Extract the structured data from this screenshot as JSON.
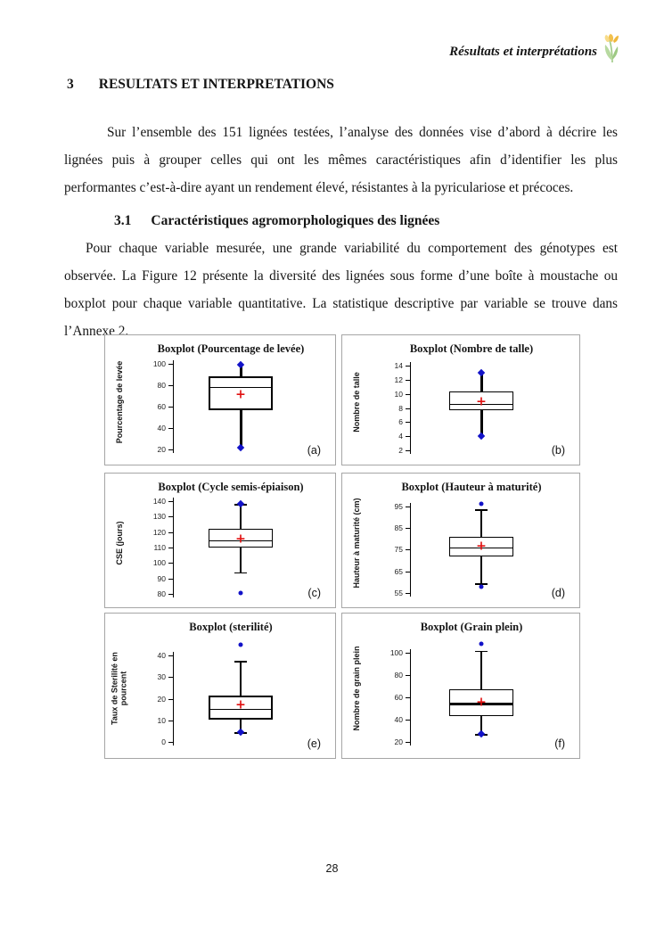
{
  "page": {
    "header": {
      "title": "Résultats et interprétations"
    },
    "section": {
      "number": "3",
      "title": "RESULTATS ET INTERPRETATIONS"
    },
    "paragraph1": "Sur l’ensemble des 151 lignées testées, l’analyse des données vise d’abord à décrire les lignées puis à grouper celles qui ont les mêmes caractéristiques afin d’identifier les plus performantes c’est-à-dire ayant un rendement élevé, résistantes à la pyriculariose et précoces.",
    "subsection": {
      "number": "3.1",
      "title": "Caractéristiques agromorphologiques des lignées"
    },
    "paragraph2": "Pour chaque variable mesurée, une grande variabilité du comportement des génotypes est observée. La Figure 12 présente la diversité des lignées sous forme d’une boîte à moustache ou boxplot pour chaque variable quantitative. La statistique descriptive par variable se trouve dans l’Annexe 2.",
    "page_number": "28"
  },
  "colors": {
    "line": "#000000",
    "mean_marker": "#e01010",
    "point_marker": "#1212c8",
    "panel_border": "#a6a6a6",
    "flower_petal": "#f2c14e",
    "flower_leaf": "#9dc983"
  },
  "chart_data": [
    {
      "type": "boxplot",
      "letter": "(a)",
      "title": "Boxplot (Pourcentage de levée)",
      "ylabel": "Pourcentage de levée",
      "ticks": [
        20,
        40,
        60,
        80,
        100
      ],
      "ylim": [
        16,
        103
      ],
      "q1": 56.5,
      "q3": 88,
      "median": 78,
      "mean": 70.5,
      "whisker_low": 22,
      "whisker_high": 99,
      "end_markers": [
        99,
        22
      ],
      "outliers": [],
      "thick_whisker": true,
      "caps": false,
      "thick_box": true,
      "median_thick": false
    },
    {
      "type": "boxplot",
      "letter": "(b)",
      "title": "Boxplot (Nombre de talle)",
      "ylabel": "Nombre de talle",
      "ticks": [
        2,
        4,
        6,
        8,
        10,
        12,
        14
      ],
      "ylim": [
        1.5,
        14.8
      ],
      "q1": 7.7,
      "q3": 10.4,
      "median": 8.6,
      "mean": 8.9,
      "whisker_low": 4,
      "whisker_high": 13,
      "end_markers": [
        13,
        4
      ],
      "outliers": [],
      "thick_whisker": true,
      "caps": false,
      "thick_box": false,
      "median_thick": false
    },
    {
      "type": "boxplot",
      "letter": "(c)",
      "title": "Boxplot (Cycle semis-épiaison)",
      "ylabel": "CSE (jours)",
      "ticks": [
        80,
        90,
        100,
        110,
        120,
        130,
        140
      ],
      "ylim": [
        78.5,
        141.5
      ],
      "q1": 110,
      "q3": 122,
      "median": 114.5,
      "mean": 115,
      "whisker_low": 94,
      "whisker_high": 138,
      "end_markers": [
        138
      ],
      "outliers": [
        81
      ],
      "thick_whisker": false,
      "caps": true,
      "thick_box": false,
      "median_thick": false
    },
    {
      "type": "boxplot",
      "letter": "(d)",
      "title": "Boxplot (Hauteur à maturité)",
      "ylabel": "Hauteur à maturité (cm)",
      "ticks": [
        55,
        65,
        75,
        85,
        95
      ],
      "ylim": [
        53.5,
        98.5
      ],
      "q1": 72,
      "q3": 81,
      "median": 76,
      "mean": 76.5,
      "whisker_low": 59.5,
      "whisker_high": 93.5,
      "end_markers": [],
      "outliers": [
        96,
        58
      ],
      "thick_whisker": false,
      "caps": true,
      "thick_box": false,
      "median_thick": false
    },
    {
      "type": "boxplot",
      "letter": "(e)",
      "title": "Boxplot (sterilité)",
      "ylabel": "Taux de Sterilité en\npourcent",
      "ticks": [
        0,
        10,
        20,
        30,
        40
      ],
      "ylim": [
        -2.5,
        48
      ],
      "q1": 10.5,
      "q3": 21.5,
      "median": 15.5,
      "mean": 17,
      "whisker_low": 4.5,
      "whisker_high": 37.5,
      "end_markers": [
        4.5
      ],
      "outliers": [
        45
      ],
      "thick_whisker": false,
      "caps": true,
      "thick_box": true,
      "median_thick": false
    },
    {
      "type": "boxplot",
      "letter": "(f)",
      "title": "Boxplot (Grain plein)",
      "ylabel": "Nombre de grain plein",
      "ticks": [
        20,
        40,
        60,
        80,
        100
      ],
      "ylim": [
        15,
        113
      ],
      "q1": 43,
      "q3": 67,
      "median": 55,
      "mean": 55.5,
      "whisker_low": 27,
      "whisker_high": 102,
      "end_markers": [
        27
      ],
      "outliers": [
        108
      ],
      "thick_whisker": false,
      "caps": true,
      "thick_box": false,
      "median_thick": true
    }
  ]
}
